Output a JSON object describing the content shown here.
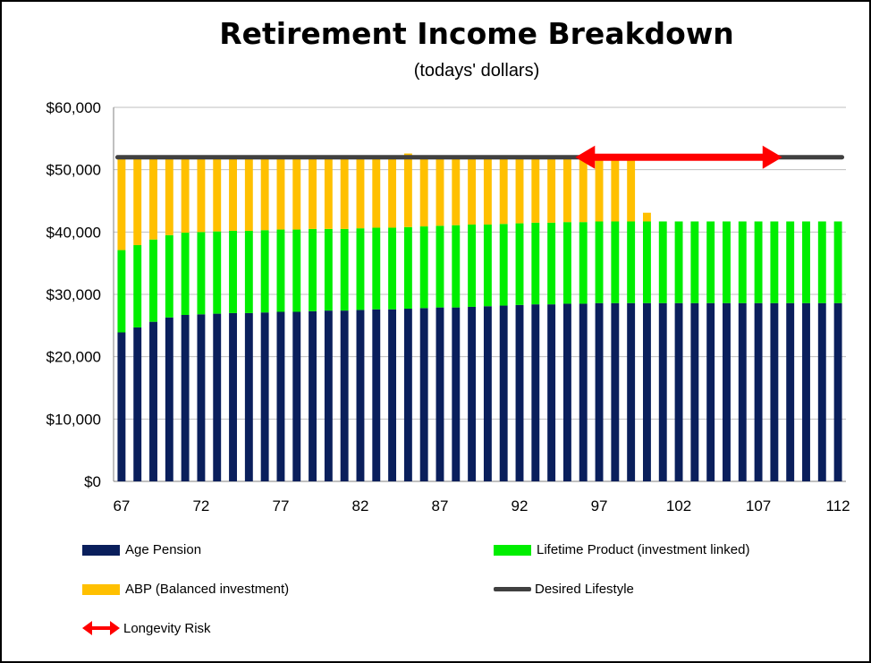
{
  "chart_data": {
    "type": "bar",
    "stacked": true,
    "title": "Retirement Income Breakdown",
    "subtitle": "(todays' dollars)",
    "xlabel": "",
    "ylabel": "",
    "ylim": [
      0,
      60000
    ],
    "y_ticks": [
      "$0",
      "$10,000",
      "$20,000",
      "$30,000",
      "$40,000",
      "$50,000",
      "$60,000"
    ],
    "y_tick_values": [
      0,
      10000,
      20000,
      30000,
      40000,
      50000,
      60000
    ],
    "x_tick_labels": [
      "67",
      "72",
      "77",
      "82",
      "87",
      "92",
      "97",
      "102",
      "107",
      "112"
    ],
    "x_tick_values": [
      67,
      72,
      77,
      82,
      87,
      92,
      97,
      102,
      107,
      112
    ],
    "x": [
      67,
      68,
      69,
      70,
      71,
      72,
      73,
      74,
      75,
      76,
      77,
      78,
      79,
      80,
      81,
      82,
      83,
      84,
      85,
      86,
      87,
      88,
      89,
      90,
      91,
      92,
      93,
      94,
      95,
      96,
      97,
      98,
      99,
      100,
      101,
      102,
      103,
      104,
      105,
      106,
      107,
      108,
      109,
      110,
      111,
      112
    ],
    "series": [
      {
        "name": "Age Pension",
        "color": "#0a1f5c",
        "values": [
          23900,
          24700,
          25600,
          26300,
          26700,
          26800,
          26900,
          27000,
          27000,
          27100,
          27200,
          27200,
          27300,
          27400,
          27400,
          27500,
          27600,
          27600,
          27700,
          27800,
          27900,
          27900,
          28000,
          28100,
          28200,
          28300,
          28400,
          28400,
          28500,
          28500,
          28600,
          28600,
          28600,
          28600,
          28600,
          28600,
          28600,
          28600,
          28600,
          28600,
          28600,
          28600,
          28600,
          28600,
          28600,
          28600
        ]
      },
      {
        "name": "Lifetime Product (investment linked)",
        "color": "#00ee00",
        "values": [
          13200,
          13200,
          13200,
          13200,
          13200,
          13200,
          13200,
          13200,
          13200,
          13200,
          13200,
          13200,
          13200,
          13100,
          13100,
          13100,
          13100,
          13100,
          13100,
          13100,
          13100,
          13200,
          13200,
          13100,
          13100,
          13100,
          13100,
          13100,
          13100,
          13100,
          13100,
          13100,
          13100,
          13100,
          13100,
          13100,
          13100,
          13100,
          13100,
          13100,
          13100,
          13100,
          13100,
          13100,
          13100,
          13100
        ]
      },
      {
        "name": "ABP (Balanced investment)",
        "color": "#ffc000",
        "values": [
          14900,
          14100,
          13200,
          12500,
          12100,
          12000,
          11900,
          11800,
          11800,
          11700,
          11600,
          11600,
          11500,
          11500,
          11500,
          11400,
          11300,
          11300,
          11800,
          11100,
          11000,
          10900,
          10800,
          10800,
          10700,
          10600,
          10500,
          10500,
          10400,
          10400,
          10300,
          10300,
          10300,
          1400,
          0,
          0,
          0,
          0,
          0,
          0,
          0,
          0,
          0,
          0,
          0,
          0
        ]
      }
    ],
    "desired_lifestyle": {
      "name": "Desired Lifestyle",
      "value": 52000,
      "color": "#404040"
    },
    "longevity_risk": {
      "name": "Longevity Risk",
      "x_start": 96,
      "x_end": 108,
      "y": 52000,
      "color": "#ff0000"
    },
    "grid": true
  },
  "legend": {
    "age_pension": "Age Pension",
    "lifetime_product": "Lifetime Product (investment linked)",
    "abp": "ABP (Balanced investment)",
    "desired_lifestyle": "Desired Lifestyle",
    "longevity_risk": "Longevity Risk"
  }
}
